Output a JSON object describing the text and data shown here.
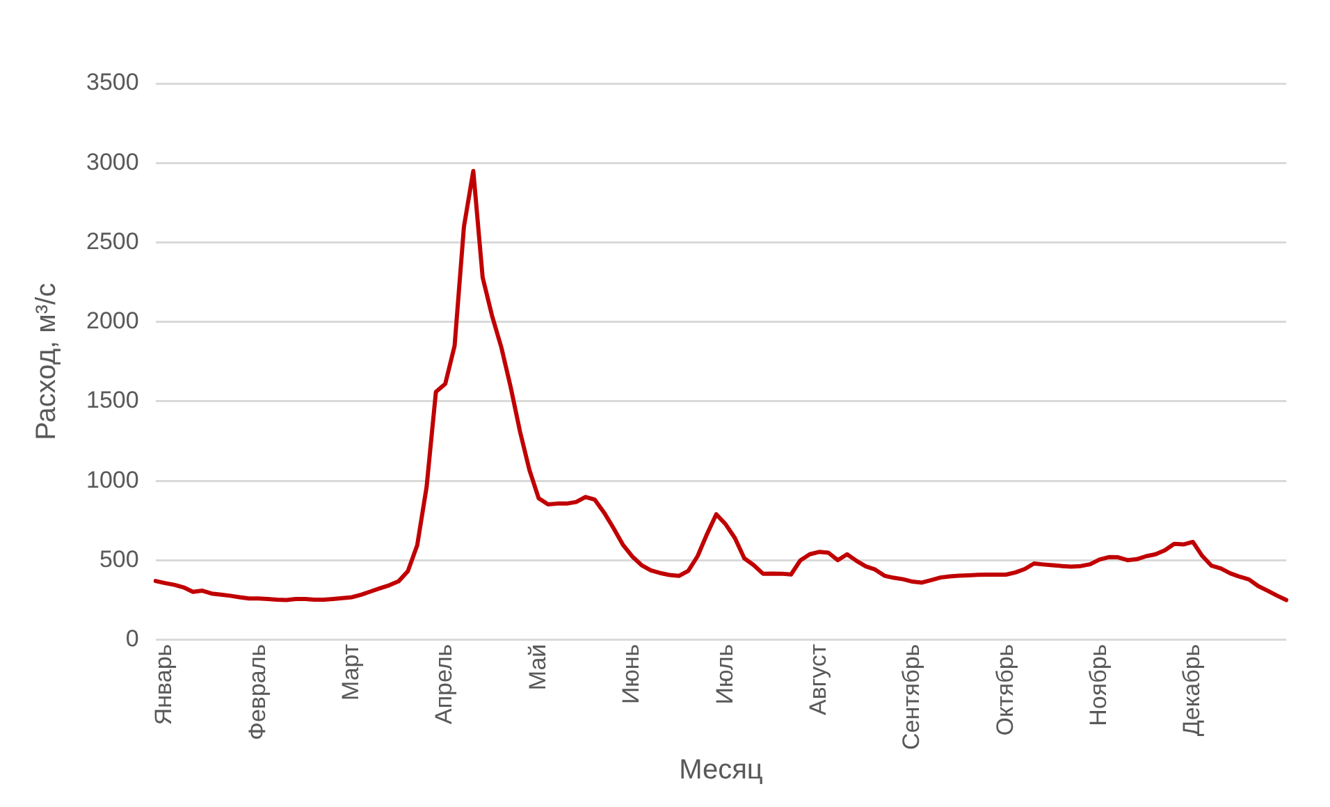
{
  "chart_data": {
    "type": "line",
    "xlabel": "Месяц",
    "ylabel": "Расход, м³/с",
    "categories": [
      null,
      "Январь",
      null,
      null,
      null,
      null,
      null,
      null,
      null,
      null,
      null,
      "Февраль",
      null,
      null,
      null,
      null,
      null,
      null,
      null,
      null,
      null,
      "Март",
      null,
      null,
      null,
      null,
      null,
      null,
      null,
      null,
      null,
      "Апрель",
      null,
      null,
      null,
      null,
      null,
      null,
      null,
      null,
      null,
      "Май",
      null,
      null,
      null,
      null,
      null,
      null,
      null,
      null,
      null,
      "Июнь",
      null,
      null,
      null,
      null,
      null,
      null,
      null,
      null,
      null,
      "Июль",
      null,
      null,
      null,
      null,
      null,
      null,
      null,
      null,
      null,
      "Август",
      null,
      null,
      null,
      null,
      null,
      null,
      null,
      null,
      null,
      "Сентябрь",
      null,
      null,
      null,
      null,
      null,
      null,
      null,
      null,
      null,
      "Октябрь",
      null,
      null,
      null,
      null,
      null,
      null,
      null,
      null,
      null,
      "Ноябрь",
      null,
      null,
      null,
      null,
      null,
      null,
      null,
      null,
      null,
      "Декабрь",
      null,
      null,
      null,
      null,
      null,
      null,
      null,
      null,
      null,
      null
    ],
    "ylim": [
      0,
      3500
    ],
    "yticks": [
      0,
      500,
      1000,
      1500,
      2000,
      2500,
      3000,
      3500
    ],
    "grid": "y",
    "legend": false,
    "marker": "none",
    "line_style": "solid",
    "series": [
      {
        "color": "#c00000",
        "values": [
          370,
          357,
          346,
          330,
          302,
          309,
          291,
          284,
          277,
          268,
          260,
          260,
          257,
          252,
          250,
          257,
          257,
          252,
          252,
          257,
          262,
          268,
          284,
          304,
          324,
          343,
          368,
          432,
          595,
          960,
          1560,
          1610,
          1850,
          2600,
          2950,
          2280,
          2040,
          1840,
          1590,
          1310,
          1070,
          890,
          852,
          857,
          857,
          867,
          899,
          882,
          800,
          703,
          599,
          525,
          470,
          437,
          420,
          408,
          402,
          434,
          526,
          664,
          790,
          727,
          640,
          513,
          470,
          416,
          417,
          416,
          411,
          500,
          538,
          553,
          548,
          501,
          538,
          497,
          462,
          442,
          403,
          390,
          381,
          366,
          360,
          376,
          392,
          399,
          403,
          406,
          409,
          410,
          410,
          410,
          424,
          445,
          480,
          474,
          469,
          464,
          460,
          464,
          475,
          505,
          520,
          519,
          501,
          507,
          526,
          538,
          563,
          604,
          600,
          616,
          528,
          466,
          449,
          418,
          397,
          380,
          338,
          309,
          278,
          250
        ]
      }
    ]
  }
}
